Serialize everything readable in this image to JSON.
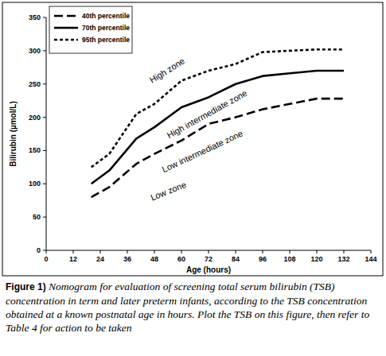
{
  "chart_data": {
    "type": "line",
    "x_label": "Age (hours)",
    "y_label": "Bilirubin (µmol/L)",
    "x": [
      20,
      28,
      40,
      48,
      60,
      72,
      84,
      96,
      108,
      120,
      132
    ],
    "series": [
      {
        "name": "40th percentile",
        "color": "#000000",
        "line_style": "dashed",
        "values": [
          80,
          95,
          130,
          145,
          165,
          190,
          200,
          212,
          220,
          228,
          228
        ]
      },
      {
        "name": "70th percentile",
        "color": "#000000",
        "line_style": "solid",
        "values": [
          100,
          120,
          168,
          185,
          215,
          230,
          250,
          262,
          266,
          270,
          270
        ]
      },
      {
        "name": "95th  percentile",
        "color": "#000000",
        "line_style": "dotted",
        "values": [
          125,
          145,
          205,
          220,
          255,
          270,
          280,
          298,
          300,
          302,
          302
        ]
      }
    ],
    "annotations": [
      "High zone",
      "High intermediate zone",
      "Low intermediate zone",
      "Low zone"
    ],
    "xlim": [
      0,
      144
    ],
    "xticks": [
      0,
      12,
      24,
      36,
      48,
      60,
      72,
      84,
      96,
      108,
      120,
      132,
      144
    ],
    "ylim": [
      0,
      350
    ],
    "yticks": [
      0,
      50,
      100,
      150,
      200,
      250,
      300,
      350
    ],
    "grid": false,
    "legend": "upper left",
    "caption_label": "Figure 1)",
    "caption": "Nomogram for evaluation of screening total serum bilirubin (TSB) concentration in term and later preterm infants, according to the TSB concentration obtained at a known postnatal age in hours. Plot the TSB on this figure, then refer to Table 4 for action to be taken"
  }
}
